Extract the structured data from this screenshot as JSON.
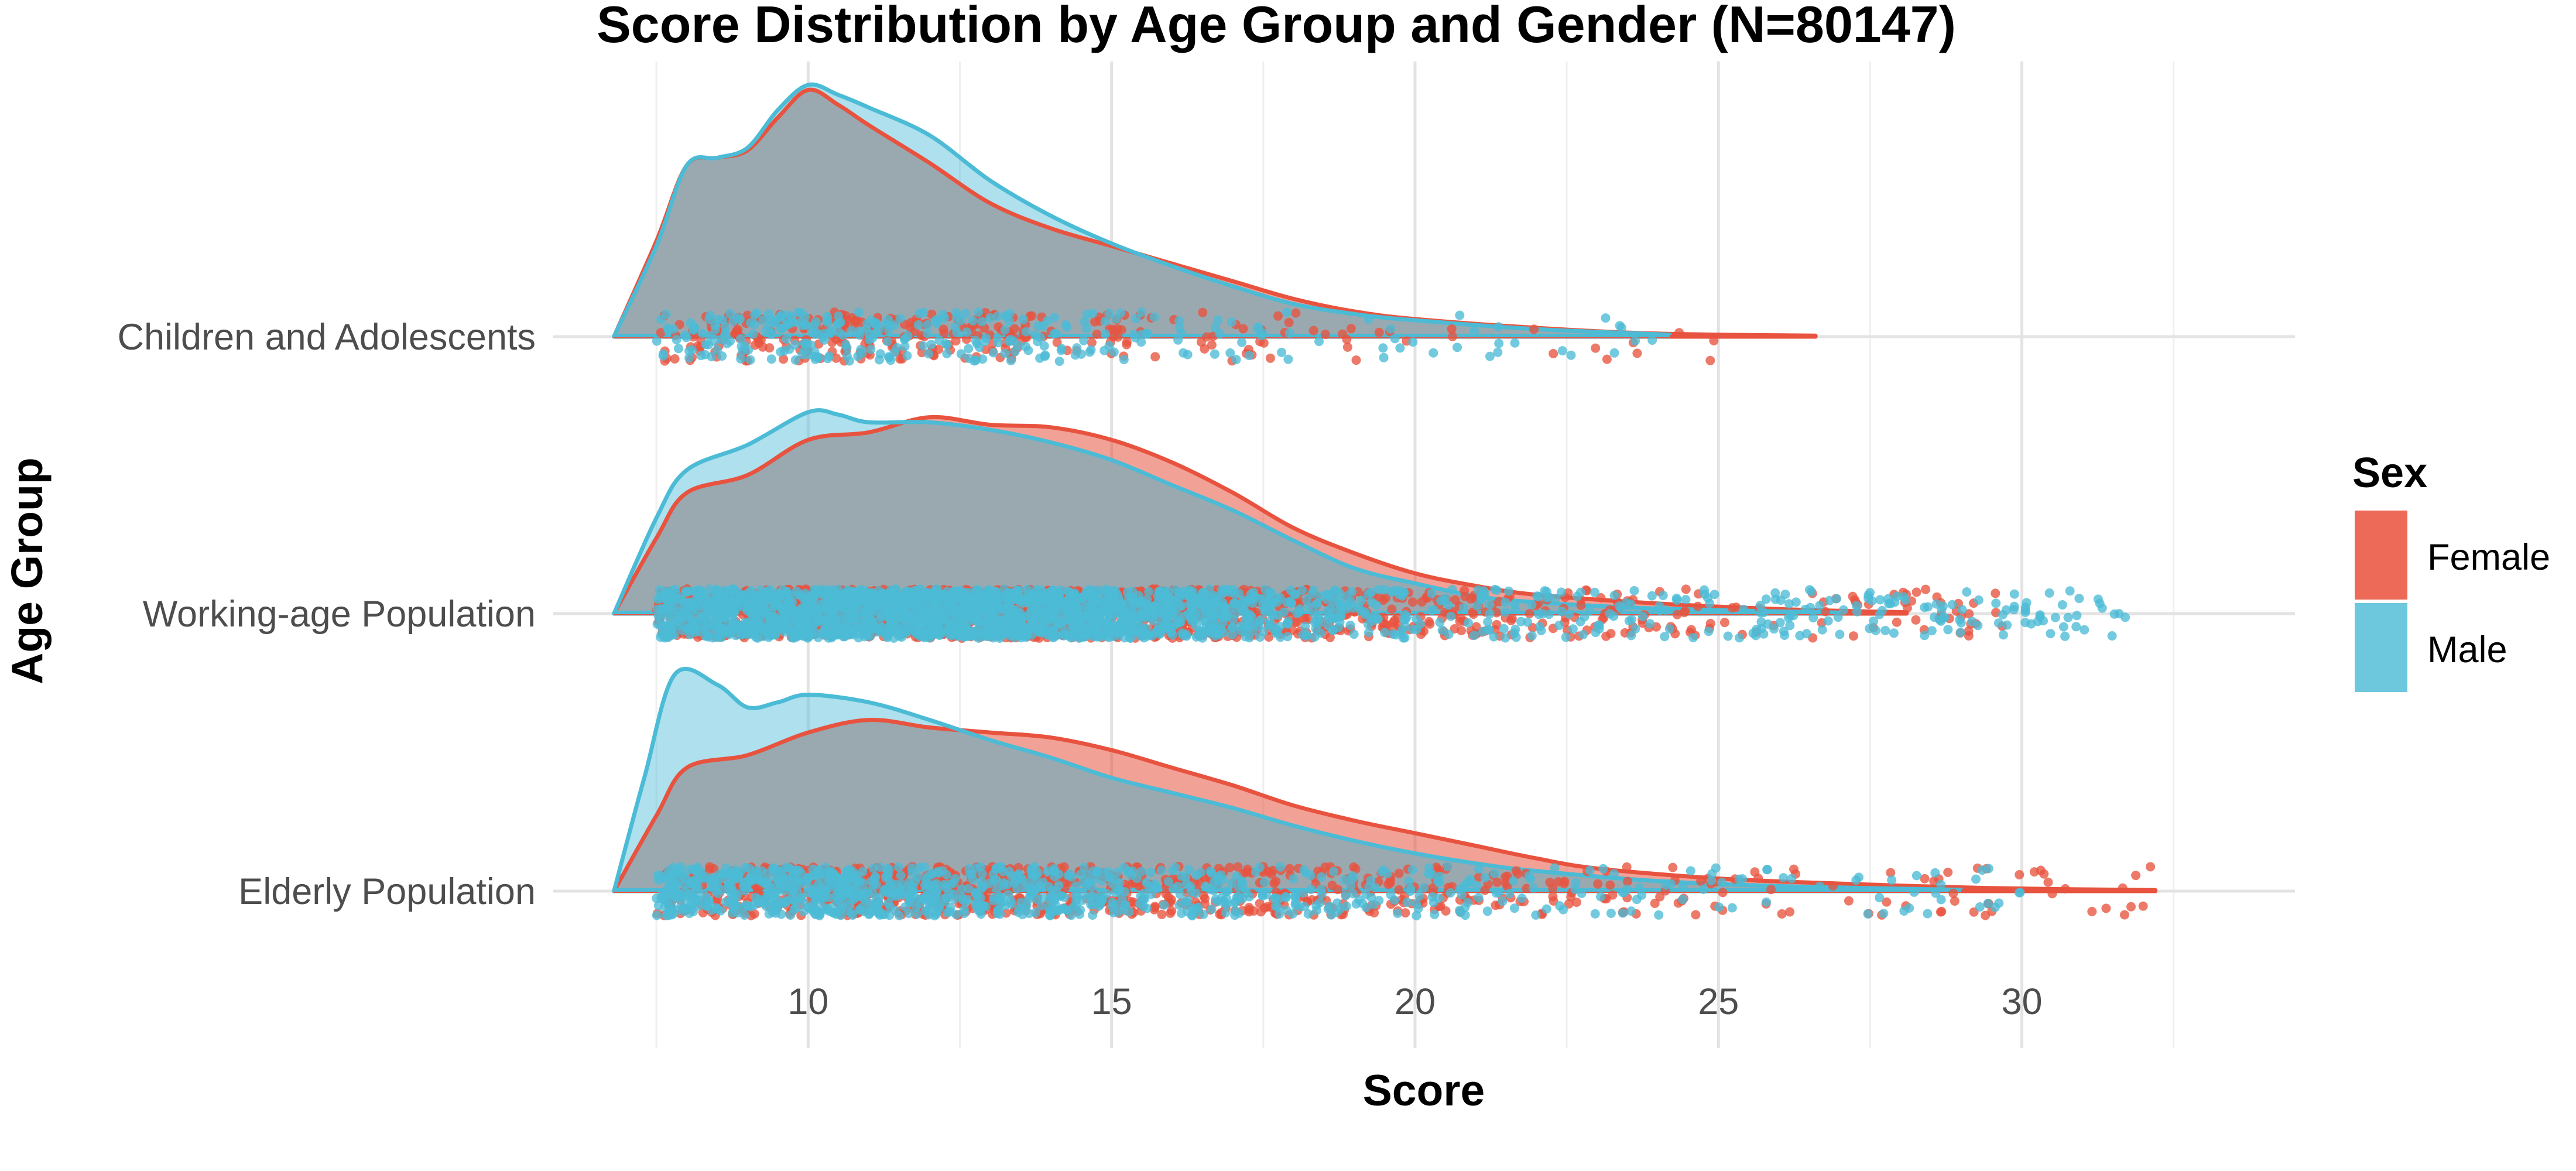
{
  "chart_data": {
    "type": "area",
    "title": "Score Distribution by Age Group and Gender (N=80147)",
    "xlabel": "Score",
    "ylabel": "Age Group",
    "xlim": [
      5.8,
      34.5
    ],
    "x_ticks": [
      10,
      15,
      20,
      25,
      30
    ],
    "grid": true,
    "legend": {
      "title": "Sex",
      "placement": "right"
    },
    "categories": [
      "Children and Adolescents",
      "Working-age Population",
      "Elderly Population"
    ],
    "colors": {
      "Female": "#e8533f",
      "Male": "#4bbbd6",
      "overlap": "#9aa9b0"
    },
    "series": [
      {
        "name": "Female",
        "groups": [
          {
            "group": "Children and Adolescents",
            "range": [
              6.8,
              26.6
            ],
            "density": [
              [
                6.8,
                0.0
              ],
              [
                7.5,
                0.38
              ],
              [
                8.0,
                0.68
              ],
              [
                8.5,
                0.71
              ],
              [
                9.0,
                0.74
              ],
              [
                9.5,
                0.87
              ],
              [
                10.0,
                0.98
              ],
              [
                10.5,
                0.92
              ],
              [
                11.0,
                0.84
              ],
              [
                12.0,
                0.69
              ],
              [
                13.0,
                0.53
              ],
              [
                14.0,
                0.43
              ],
              [
                15.0,
                0.36
              ],
              [
                16.0,
                0.29
              ],
              [
                17.0,
                0.22
              ],
              [
                18.0,
                0.15
              ],
              [
                19.0,
                0.1
              ],
              [
                20.0,
                0.07
              ],
              [
                22.0,
                0.035
              ],
              [
                24.0,
                0.012
              ],
              [
                26.6,
                0.004
              ]
            ]
          },
          {
            "group": "Working-age Population",
            "range": [
              6.8,
              28.1
            ],
            "density": [
              [
                6.8,
                0.0
              ],
              [
                7.5,
                0.3
              ],
              [
                8.0,
                0.48
              ],
              [
                9.0,
                0.55
              ],
              [
                10.0,
                0.69
              ],
              [
                11.0,
                0.72
              ],
              [
                12.0,
                0.78
              ],
              [
                13.0,
                0.75
              ],
              [
                14.0,
                0.74
              ],
              [
                15.0,
                0.69
              ],
              [
                16.0,
                0.6
              ],
              [
                17.0,
                0.48
              ],
              [
                18.0,
                0.34
              ],
              [
                19.0,
                0.24
              ],
              [
                20.0,
                0.16
              ],
              [
                21.0,
                0.11
              ],
              [
                22.0,
                0.075
              ],
              [
                24.0,
                0.04
              ],
              [
                26.0,
                0.018
              ],
              [
                28.1,
                0.005
              ]
            ]
          },
          {
            "group": "Elderly Population",
            "range": [
              6.8,
              32.2
            ],
            "density": [
              [
                6.8,
                0.0
              ],
              [
                7.5,
                0.3
              ],
              [
                8.0,
                0.49
              ],
              [
                9.0,
                0.54
              ],
              [
                10.0,
                0.63
              ],
              [
                11.0,
                0.68
              ],
              [
                12.0,
                0.65
              ],
              [
                13.0,
                0.63
              ],
              [
                14.0,
                0.61
              ],
              [
                15.0,
                0.56
              ],
              [
                16.0,
                0.49
              ],
              [
                17.0,
                0.42
              ],
              [
                18.0,
                0.34
              ],
              [
                19.0,
                0.28
              ],
              [
                20.0,
                0.23
              ],
              [
                21.0,
                0.18
              ],
              [
                22.0,
                0.13
              ],
              [
                23.0,
                0.09
              ],
              [
                25.0,
                0.05
              ],
              [
                27.0,
                0.03
              ],
              [
                29.5,
                0.012
              ],
              [
                32.2,
                0.004
              ]
            ]
          }
        ],
        "points_range": [
          {
            "group": "Children and Adolescents",
            "min": 7.5,
            "max": 25.0,
            "count": 280
          },
          {
            "group": "Working-age Population",
            "min": 7.5,
            "max": 30.0,
            "count": 1500
          },
          {
            "group": "Elderly Population",
            "min": 7.5,
            "max": 32.2,
            "count": 900
          }
        ]
      },
      {
        "name": "Male",
        "groups": [
          {
            "group": "Children and Adolescents",
            "range": [
              6.8,
              24.2
            ],
            "density": [
              [
                6.8,
                0.0
              ],
              [
                7.5,
                0.36
              ],
              [
                8.0,
                0.68
              ],
              [
                8.5,
                0.71
              ],
              [
                9.0,
                0.75
              ],
              [
                9.5,
                0.9
              ],
              [
                10.0,
                1.0
              ],
              [
                10.5,
                0.96
              ],
              [
                11.0,
                0.91
              ],
              [
                12.0,
                0.8
              ],
              [
                13.0,
                0.62
              ],
              [
                14.0,
                0.48
              ],
              [
                15.0,
                0.37
              ],
              [
                16.0,
                0.28
              ],
              [
                17.0,
                0.2
              ],
              [
                18.0,
                0.13
              ],
              [
                19.0,
                0.09
              ],
              [
                20.0,
                0.065
              ],
              [
                22.0,
                0.03
              ],
              [
                24.2,
                0.008
              ]
            ]
          },
          {
            "group": "Working-age Population",
            "range": [
              6.8,
              27.0
            ],
            "density": [
              [
                6.8,
                0.0
              ],
              [
                7.5,
                0.38
              ],
              [
                8.0,
                0.57
              ],
              [
                9.0,
                0.67
              ],
              [
                10.0,
                0.8
              ],
              [
                10.5,
                0.79
              ],
              [
                11.0,
                0.76
              ],
              [
                12.0,
                0.76
              ],
              [
                13.0,
                0.73
              ],
              [
                14.0,
                0.68
              ],
              [
                15.0,
                0.61
              ],
              [
                16.0,
                0.51
              ],
              [
                17.0,
                0.41
              ],
              [
                18.0,
                0.29
              ],
              [
                19.0,
                0.18
              ],
              [
                20.0,
                0.12
              ],
              [
                21.0,
                0.07
              ],
              [
                22.0,
                0.045
              ],
              [
                24.0,
                0.02
              ],
              [
                27.0,
                0.004
              ]
            ]
          },
          {
            "group": "Elderly Population",
            "range": [
              6.8,
              29.0
            ],
            "density": [
              [
                6.8,
                0.0
              ],
              [
                7.3,
                0.45
              ],
              [
                7.8,
                0.86
              ],
              [
                8.5,
                0.82
              ],
              [
                9.0,
                0.73
              ],
              [
                9.5,
                0.75
              ],
              [
                10.0,
                0.78
              ],
              [
                11.0,
                0.75
              ],
              [
                12.0,
                0.68
              ],
              [
                13.0,
                0.6
              ],
              [
                14.0,
                0.53
              ],
              [
                15.0,
                0.45
              ],
              [
                16.0,
                0.39
              ],
              [
                17.0,
                0.33
              ],
              [
                18.0,
                0.26
              ],
              [
                19.0,
                0.2
              ],
              [
                20.0,
                0.15
              ],
              [
                21.0,
                0.11
              ],
              [
                22.0,
                0.08
              ],
              [
                24.0,
                0.04
              ],
              [
                26.0,
                0.02
              ],
              [
                29.0,
                0.005
              ]
            ]
          }
        ],
        "points_range": [
          {
            "group": "Children and Adolescents",
            "min": 7.5,
            "max": 24.0,
            "count": 320
          },
          {
            "group": "Working-age Population",
            "min": 7.5,
            "max": 31.8,
            "count": 2200
          },
          {
            "group": "Elderly Population",
            "min": 7.5,
            "max": 30.0,
            "count": 1000
          }
        ]
      }
    ]
  }
}
